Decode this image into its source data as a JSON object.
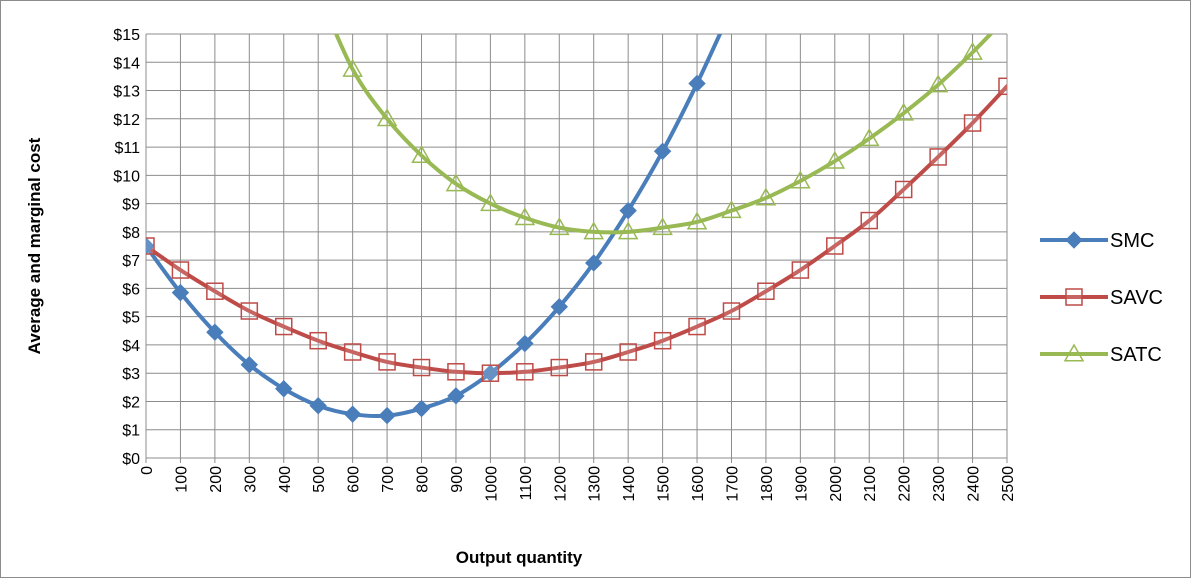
{
  "chart_data": {
    "type": "line",
    "xlabel": "Output quantity",
    "ylabel": "Average and marginal cost",
    "x": [
      0,
      100,
      200,
      300,
      400,
      500,
      600,
      700,
      800,
      900,
      1000,
      1100,
      1200,
      1300,
      1400,
      1500,
      1600,
      1700,
      1800,
      1900,
      2000,
      2100,
      2200,
      2300,
      2400,
      2500
    ],
    "x_tick_labels": [
      "0",
      "100",
      "200",
      "300",
      "400",
      "500",
      "600",
      "700",
      "800",
      "900",
      "1000",
      "1100",
      "1200",
      "1300",
      "1400",
      "1500",
      "1600",
      "1700",
      "1800",
      "1900",
      "2000",
      "2100",
      "2200",
      "2300",
      "2400",
      "2500"
    ],
    "y_tick_labels": [
      "$0",
      "$1",
      "$2",
      "$3",
      "$4",
      "$5",
      "$6",
      "$7",
      "$8",
      "$9",
      "$10",
      "$11",
      "$12",
      "$13",
      "$14",
      "$15"
    ],
    "ylim": [
      0,
      15
    ],
    "xlim": [
      0,
      2500
    ],
    "grid": true,
    "legend_position": "right",
    "series": [
      {
        "name": "SMC",
        "color": "#4a7ebb",
        "marker": "diamond",
        "values": [
          7.5,
          5.85,
          4.45,
          3.3,
          2.45,
          1.85,
          1.55,
          1.5,
          1.75,
          2.2,
          3.0,
          4.05,
          5.35,
          6.9,
          8.75,
          10.85,
          13.25,
          15.9,
          null,
          null,
          null,
          null,
          null,
          null,
          null,
          null
        ]
      },
      {
        "name": "SAVC",
        "color": "#be4b48",
        "marker": "square",
        "values": [
          7.5,
          6.65,
          5.9,
          5.2,
          4.65,
          4.15,
          3.75,
          3.4,
          3.2,
          3.05,
          3.0,
          3.05,
          3.2,
          3.4,
          3.75,
          4.15,
          4.65,
          5.2,
          5.9,
          6.65,
          7.5,
          8.4,
          9.5,
          10.65,
          11.85,
          13.15
        ]
      },
      {
        "name": "SATC",
        "color": "#98b954",
        "marker": "triangle",
        "values": [
          null,
          null,
          null,
          null,
          null,
          16.5,
          13.75,
          12.0,
          10.7,
          9.7,
          9.0,
          8.5,
          8.15,
          8.0,
          8.0,
          8.15,
          8.35,
          8.75,
          9.2,
          9.8,
          10.5,
          11.3,
          12.2,
          13.2,
          14.35,
          15.6
        ]
      }
    ]
  }
}
